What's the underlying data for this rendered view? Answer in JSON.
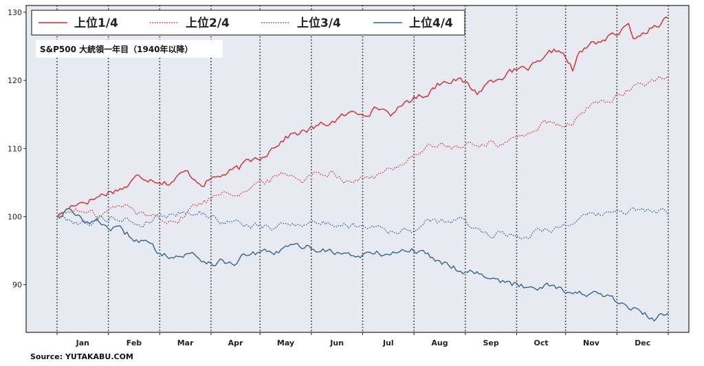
{
  "chart_data": {
    "type": "line",
    "subtitle": "S&P500 大統領一年目（1940年以降）",
    "source": "Source: YUTAKABU.COM",
    "months": [
      "Jan",
      "Feb",
      "Mar",
      "Apr",
      "May",
      "Jun",
      "Jul",
      "Aug",
      "Sep",
      "Oct",
      "Nov",
      "Dec"
    ],
    "yticks": [
      90,
      100,
      110,
      120,
      130
    ],
    "ylim": [
      83,
      131
    ],
    "xlim": [
      -5.5,
      251
    ],
    "legend_position": "top-left",
    "grid": true,
    "series": [
      {
        "name": "上位1/4",
        "color": "#d62728",
        "dash": "solid",
        "keypoints": [
          [
            0,
            100
          ],
          [
            8,
            102
          ],
          [
            15,
            102.6
          ],
          [
            22,
            103.6
          ],
          [
            30,
            104.5
          ],
          [
            35,
            106
          ],
          [
            42,
            105.6
          ],
          [
            48,
            105
          ],
          [
            55,
            106.5
          ],
          [
            62,
            105
          ],
          [
            70,
            106
          ],
          [
            78,
            107
          ],
          [
            82,
            108
          ],
          [
            88,
            109
          ],
          [
            95,
            111
          ],
          [
            100,
            112
          ],
          [
            106,
            112.5
          ],
          [
            112,
            113.2
          ],
          [
            118,
            114
          ],
          [
            125,
            115
          ],
          [
            130,
            115.3
          ],
          [
            138,
            116
          ],
          [
            145,
            115
          ],
          [
            150,
            117
          ],
          [
            158,
            118
          ],
          [
            163,
            119.5
          ],
          [
            170,
            120.5
          ],
          [
            175,
            119.5
          ],
          [
            180,
            118.2
          ],
          [
            186,
            120
          ],
          [
            192,
            121
          ],
          [
            200,
            121.5
          ],
          [
            208,
            122.5
          ],
          [
            212,
            124
          ],
          [
            216,
            124.5
          ],
          [
            221,
            121.5
          ],
          [
            224,
            124
          ],
          [
            230,
            125.5
          ],
          [
            238,
            126.5
          ],
          [
            245,
            127.8
          ],
          [
            248,
            126
          ],
          [
            255,
            128
          ],
          [
            262,
            129.3
          ]
        ]
      },
      {
        "name": "上位2/4",
        "color": "#d62728",
        "dash": "dotted",
        "keypoints": [
          [
            0,
            100
          ],
          [
            6,
            101
          ],
          [
            12,
            100.5
          ],
          [
            18,
            100.2
          ],
          [
            24,
            101.2
          ],
          [
            30,
            101.6
          ],
          [
            35,
            100.4
          ],
          [
            40,
            100.2
          ],
          [
            47,
            99.8
          ],
          [
            52,
            99.3
          ],
          [
            58,
            101.5
          ],
          [
            65,
            102.5
          ],
          [
            72,
            104
          ],
          [
            78,
            103.5
          ],
          [
            85,
            104.5
          ],
          [
            92,
            105.5
          ],
          [
            98,
            106.5
          ],
          [
            105,
            105.5
          ],
          [
            112,
            106.4
          ],
          [
            118,
            106.8
          ],
          [
            124,
            105.3
          ],
          [
            130,
            105.5
          ],
          [
            138,
            106
          ],
          [
            145,
            107.2
          ],
          [
            150,
            108.5
          ],
          [
            158,
            110.2
          ],
          [
            165,
            110.5
          ],
          [
            172,
            110
          ],
          [
            178,
            110.5
          ],
          [
            185,
            111
          ],
          [
            190,
            110.6
          ],
          [
            195,
            111
          ],
          [
            200,
            112
          ],
          [
            205,
            113
          ],
          [
            210,
            113.8
          ],
          [
            215,
            113
          ],
          [
            222,
            114
          ],
          [
            230,
            116.5
          ],
          [
            238,
            117.5
          ],
          [
            243,
            118
          ],
          [
            250,
            119.5
          ],
          [
            255,
            120
          ],
          [
            262,
            120.5
          ]
        ]
      },
      {
        "name": "上位3/4",
        "color": "#1f5aa0",
        "dash": "dotted",
        "keypoints": [
          [
            0,
            100
          ],
          [
            6,
            99.5
          ],
          [
            12,
            99
          ],
          [
            18,
            99.5
          ],
          [
            24,
            100
          ],
          [
            30,
            99.5
          ],
          [
            36,
            98.8
          ],
          [
            42,
            100
          ],
          [
            48,
            100.3
          ],
          [
            55,
            100.8
          ],
          [
            62,
            100.6
          ],
          [
            70,
            99.5
          ],
          [
            78,
            99
          ],
          [
            85,
            98.6
          ],
          [
            92,
            98.3
          ],
          [
            100,
            99
          ],
          [
            108,
            99.2
          ],
          [
            116,
            99
          ],
          [
            122,
            98.8
          ],
          [
            130,
            98.7
          ],
          [
            138,
            98.8
          ],
          [
            145,
            97.6
          ],
          [
            152,
            98
          ],
          [
            158,
            99
          ],
          [
            165,
            99.3
          ],
          [
            172,
            99.5
          ],
          [
            178,
            98.5
          ],
          [
            185,
            97.5
          ],
          [
            192,
            97.6
          ],
          [
            200,
            97
          ],
          [
            208,
            98.3
          ],
          [
            215,
            98.4
          ],
          [
            222,
            99.5
          ],
          [
            230,
            100
          ],
          [
            238,
            100.6
          ],
          [
            245,
            100.8
          ],
          [
            252,
            101
          ],
          [
            262,
            100.5
          ]
        ]
      },
      {
        "name": "上位4/4",
        "color": "#2c6496",
        "dash": "solid",
        "keypoints": [
          [
            0,
            100
          ],
          [
            4,
            101
          ],
          [
            10,
            99.6
          ],
          [
            18,
            99.2
          ],
          [
            25,
            98.2
          ],
          [
            32,
            97
          ],
          [
            38,
            96.2
          ],
          [
            42,
            95
          ],
          [
            48,
            94.5
          ],
          [
            52,
            94.2
          ],
          [
            58,
            94.5
          ],
          [
            64,
            93.5
          ],
          [
            70,
            93.3
          ],
          [
            76,
            93.3
          ],
          [
            82,
            94.5
          ],
          [
            88,
            94.5
          ],
          [
            92,
            94.5
          ],
          [
            98,
            95.3
          ],
          [
            105,
            95.6
          ],
          [
            112,
            95.3
          ],
          [
            118,
            95
          ],
          [
            122,
            94.5
          ],
          [
            128,
            94.2
          ],
          [
            134,
            94.5
          ],
          [
            140,
            94.5
          ],
          [
            146,
            94.8
          ],
          [
            152,
            95.2
          ],
          [
            158,
            94.5
          ],
          [
            165,
            93.5
          ],
          [
            172,
            92.3
          ],
          [
            178,
            92
          ],
          [
            185,
            91.5
          ],
          [
            190,
            90.5
          ],
          [
            195,
            90
          ],
          [
            200,
            89.8
          ],
          [
            206,
            89.8
          ],
          [
            210,
            90.3
          ],
          [
            215,
            89.6
          ],
          [
            220,
            89
          ],
          [
            225,
            88.6
          ],
          [
            230,
            88.7
          ],
          [
            236,
            88
          ],
          [
            242,
            87
          ],
          [
            247,
            86.5
          ],
          [
            252,
            85.5
          ],
          [
            256,
            84.8
          ],
          [
            260,
            85.6
          ],
          [
            262,
            86
          ]
        ]
      }
    ]
  }
}
